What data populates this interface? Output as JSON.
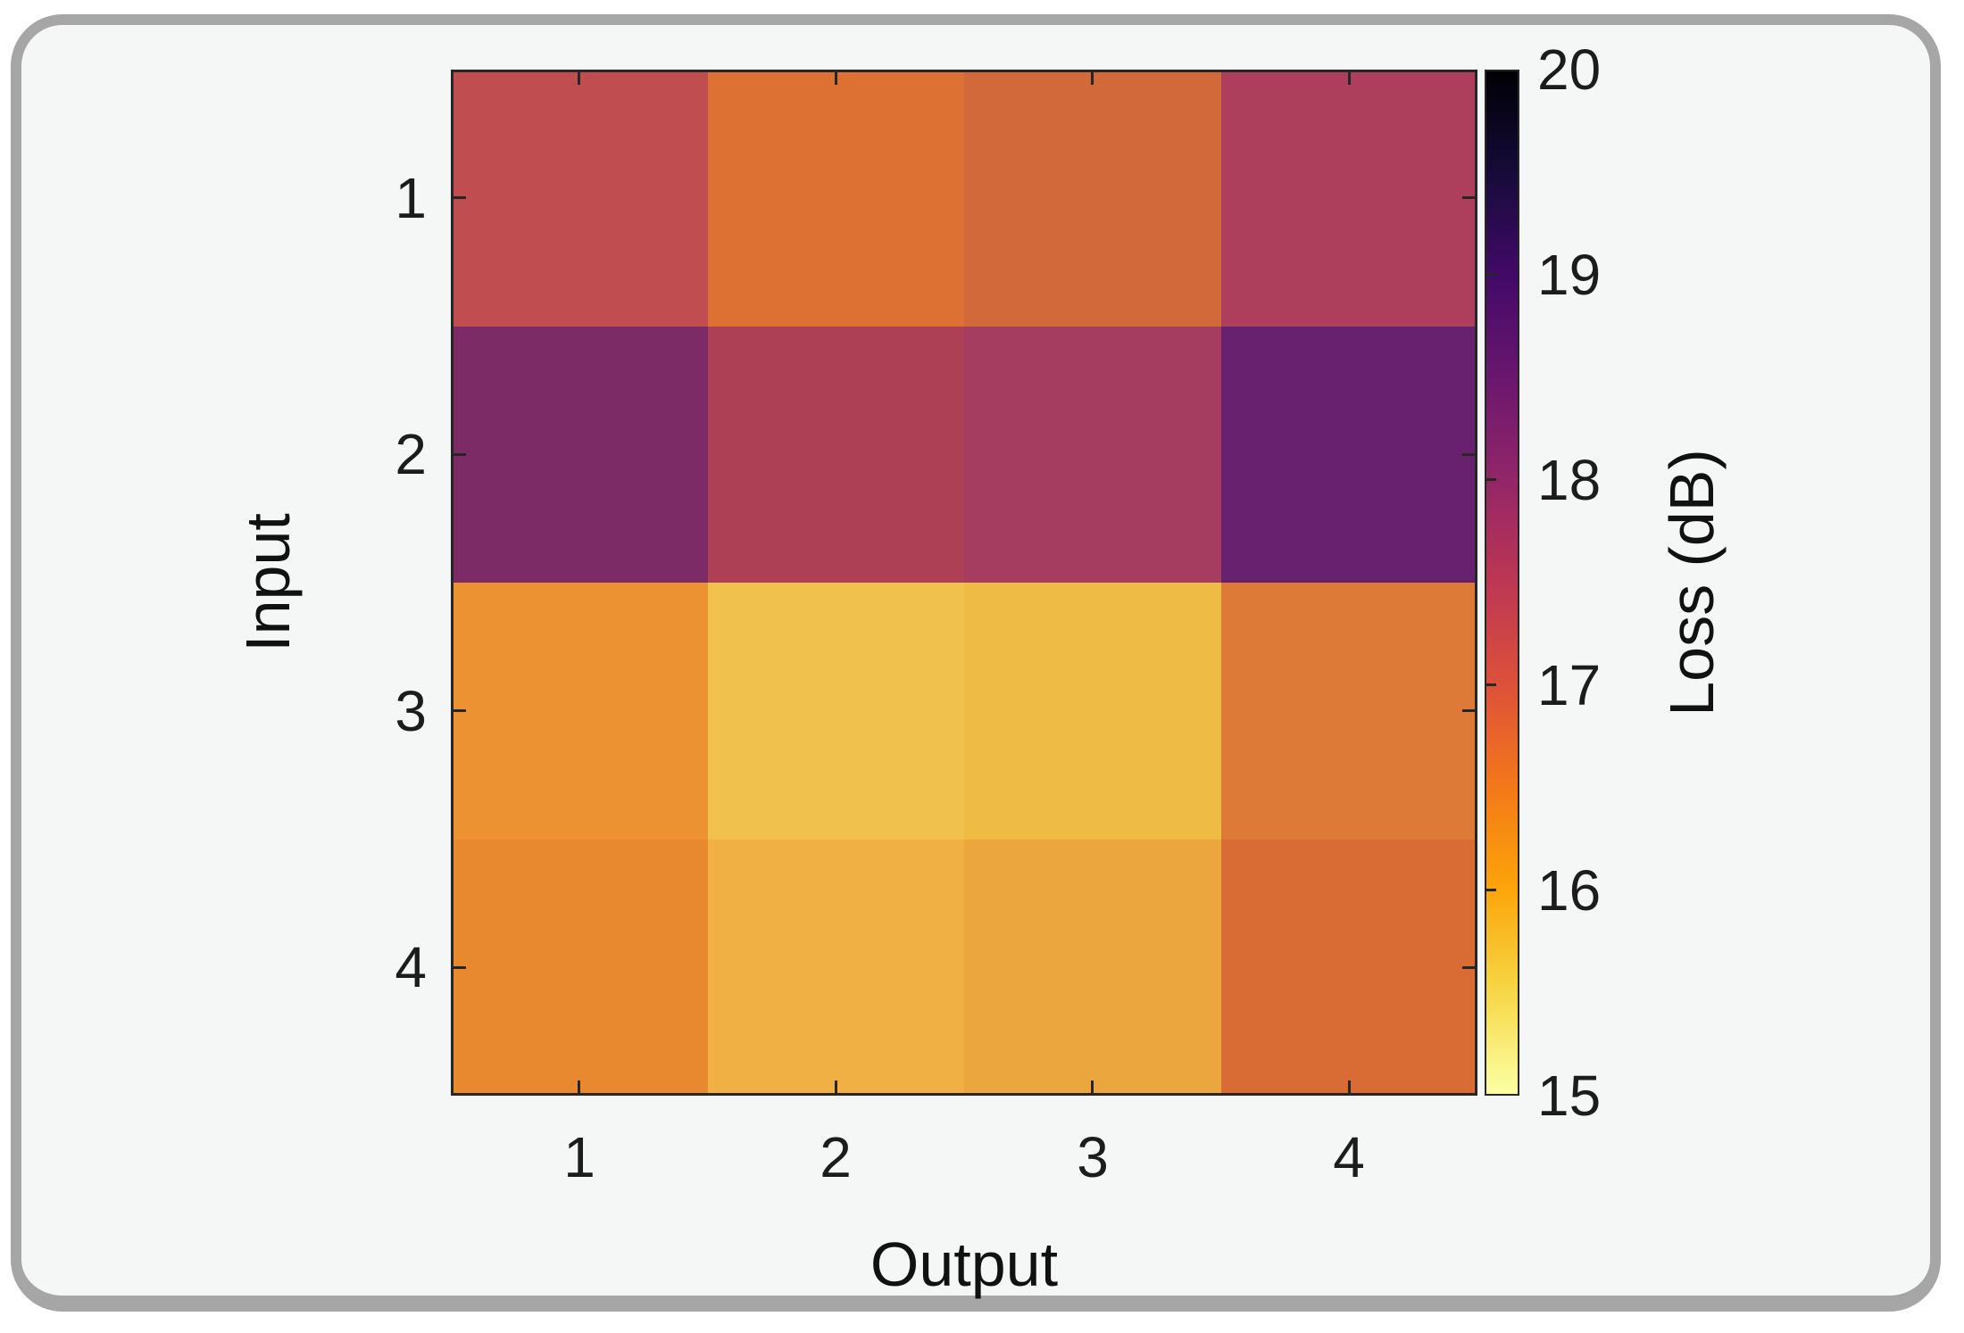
{
  "figure": {
    "background": "#ffffff",
    "card_fill": "#f5f6f6",
    "card_border_color": "#a6a6a6",
    "axis_color": "#262626"
  },
  "chart_data": {
    "type": "heatmap",
    "title": "",
    "xlabel": "Output",
    "ylabel": "Input",
    "x_ticklabels": [
      "1",
      "2",
      "3",
      "4"
    ],
    "y_ticklabels": [
      "1",
      "2",
      "3",
      "4"
    ],
    "grid": false,
    "values_db_estimated": [
      [
        17.3,
        16.8,
        16.9,
        17.6
      ],
      [
        18.1,
        17.5,
        17.7,
        18.4
      ],
      [
        16.4,
        15.6,
        15.8,
        16.5
      ],
      [
        16.3,
        15.9,
        16.0,
        16.7
      ]
    ],
    "cell_colors": [
      [
        "#c04d50",
        "#dd7033",
        "#d2693a",
        "#ad3e5c"
      ],
      [
        "#7c2b66",
        "#ae4056",
        "#a43d60",
        "#67216e"
      ],
      [
        "#ec9233",
        "#f0c24d",
        "#eebb45",
        "#dd7a38"
      ],
      [
        "#e8882f",
        "#f0b043",
        "#eca63e",
        "#d96c35"
      ]
    ],
    "colorbar": {
      "label": "Loss (dB)",
      "ticks": [
        "20",
        "19",
        "18",
        "17",
        "16",
        "15"
      ],
      "range_min": 15,
      "range_max": 20,
      "colormap": "inferno-reversed (dark = high loss)",
      "gradient_top_to_bottom": [
        "#000004",
        "#160b39",
        "#420a68",
        "#6a176e",
        "#932667",
        "#bc3754",
        "#dd513a",
        "#f37819",
        "#fca50a",
        "#f6d746",
        "#fcffa4"
      ]
    }
  }
}
